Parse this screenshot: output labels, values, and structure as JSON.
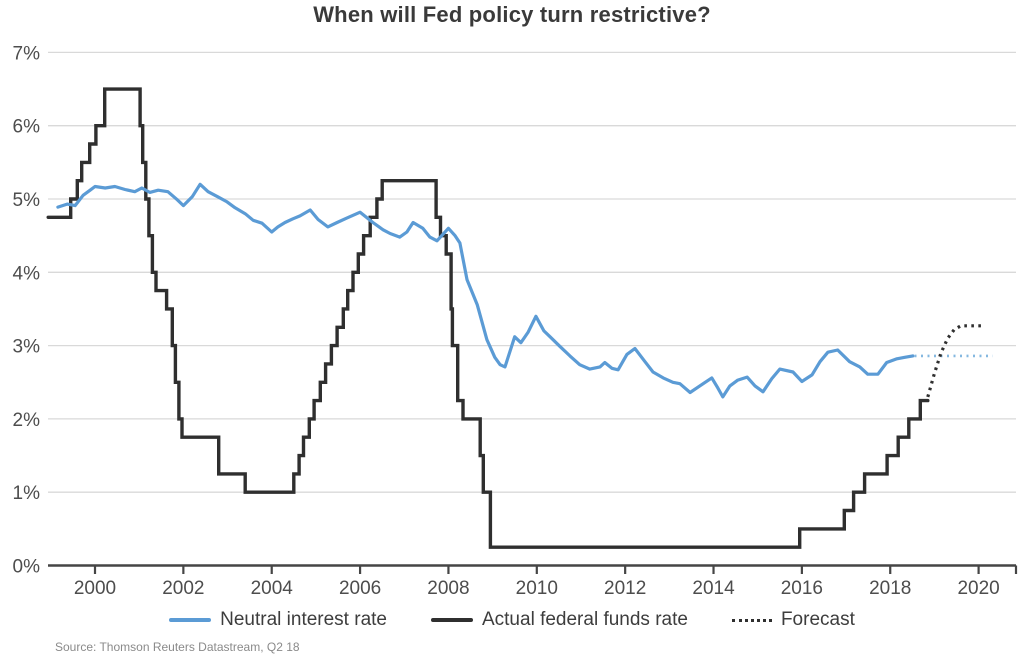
{
  "header": {
    "title": "When will Fed policy turn restrictive?"
  },
  "footer": {
    "source": "Source: Thomson Reuters Datastream, Q2 18"
  },
  "legend": {
    "items": [
      {
        "id": "neutral",
        "label": "Neutral interest rate",
        "swatch": "solid-blue-line-icon"
      },
      {
        "id": "actual",
        "label": "Actual federal funds rate",
        "swatch": "solid-black-line-icon"
      },
      {
        "id": "forecast",
        "label": "Forecast",
        "swatch": "dotted-black-line-icon"
      }
    ]
  },
  "colors": {
    "neutral": "#5B9BD5",
    "neutral_forecast": "#85b8e0",
    "actual": "#2f2f2f",
    "actual_forecast": "#2f2f2f",
    "gridline": "#d9d9d9",
    "axis": "#454545",
    "tick_label": "#4d4d4d",
    "title": "#3a3a3a",
    "source": "#8a8a8a"
  },
  "chart_data": {
    "type": "line",
    "title": "When will Fed policy turn restrictive?",
    "xlabel": "",
    "ylabel": "",
    "ylim": [
      0,
      7
    ],
    "xlim": [
      1998.94,
      2020.8
    ],
    "grid": "horizontal",
    "legend_position": "bottom",
    "y_ticks": [
      0,
      1,
      2,
      3,
      4,
      5,
      6,
      7
    ],
    "y_tick_labels": [
      "0%",
      "1%",
      "2%",
      "3%",
      "4%",
      "5%",
      "6%",
      "7%"
    ],
    "x_ticks": [
      2000,
      2002,
      2004,
      2006,
      2008,
      2010,
      2012,
      2014,
      2016,
      2018,
      2020
    ],
    "x_tick_labels": [
      "2000",
      "2002",
      "2004",
      "2006",
      "2008",
      "2010",
      "2012",
      "2014",
      "2016",
      "2018",
      "2020"
    ],
    "series": [
      {
        "id": "neutral",
        "name": "Neutral interest rate",
        "draw": "line",
        "style": "solid",
        "color": "#5B9BD5",
        "width": 3.2,
        "points": [
          [
            1999.16,
            4.89
          ],
          [
            1999.37,
            4.93
          ],
          [
            1999.55,
            4.91
          ],
          [
            1999.73,
            5.05
          ],
          [
            1999.89,
            5.12
          ],
          [
            2000.0,
            5.17
          ],
          [
            2000.23,
            5.15
          ],
          [
            2000.45,
            5.17
          ],
          [
            2000.68,
            5.13
          ],
          [
            2000.9,
            5.1
          ],
          [
            2001.06,
            5.15
          ],
          [
            2001.24,
            5.09
          ],
          [
            2001.43,
            5.12
          ],
          [
            2001.65,
            5.1
          ],
          [
            2001.86,
            4.99
          ],
          [
            2002.0,
            4.91
          ],
          [
            2002.2,
            5.03
          ],
          [
            2002.38,
            5.2
          ],
          [
            2002.56,
            5.1
          ],
          [
            2002.78,
            5.03
          ],
          [
            2002.99,
            4.96
          ],
          [
            2003.17,
            4.88
          ],
          [
            2003.4,
            4.8
          ],
          [
            2003.58,
            4.71
          ],
          [
            2003.78,
            4.67
          ],
          [
            2004.0,
            4.55
          ],
          [
            2004.14,
            4.62
          ],
          [
            2004.3,
            4.68
          ],
          [
            2004.48,
            4.73
          ],
          [
            2004.64,
            4.77
          ],
          [
            2004.87,
            4.85
          ],
          [
            2005.05,
            4.72
          ],
          [
            2005.27,
            4.62
          ],
          [
            2005.48,
            4.68
          ],
          [
            2005.7,
            4.74
          ],
          [
            2006.0,
            4.82
          ],
          [
            2006.29,
            4.68
          ],
          [
            2006.52,
            4.58
          ],
          [
            2006.68,
            4.53
          ],
          [
            2006.9,
            4.48
          ],
          [
            2007.06,
            4.55
          ],
          [
            2007.2,
            4.68
          ],
          [
            2007.42,
            4.6
          ],
          [
            2007.58,
            4.48
          ],
          [
            2007.74,
            4.43
          ],
          [
            2008.0,
            4.6
          ],
          [
            2008.15,
            4.5
          ],
          [
            2008.26,
            4.4
          ],
          [
            2008.42,
            3.9
          ],
          [
            2008.65,
            3.56
          ],
          [
            2008.87,
            3.08
          ],
          [
            2009.05,
            2.84
          ],
          [
            2009.17,
            2.74
          ],
          [
            2009.28,
            2.71
          ],
          [
            2009.5,
            3.12
          ],
          [
            2009.64,
            3.04
          ],
          [
            2009.8,
            3.18
          ],
          [
            2009.98,
            3.4
          ],
          [
            2010.16,
            3.2
          ],
          [
            2010.3,
            3.12
          ],
          [
            2010.52,
            2.99
          ],
          [
            2010.75,
            2.86
          ],
          [
            2010.97,
            2.74
          ],
          [
            2011.2,
            2.68
          ],
          [
            2011.43,
            2.71
          ],
          [
            2011.54,
            2.77
          ],
          [
            2011.7,
            2.69
          ],
          [
            2011.84,
            2.67
          ],
          [
            2012.04,
            2.88
          ],
          [
            2012.22,
            2.96
          ],
          [
            2012.45,
            2.78
          ],
          [
            2012.63,
            2.64
          ],
          [
            2012.86,
            2.56
          ],
          [
            2013.08,
            2.5
          ],
          [
            2013.24,
            2.48
          ],
          [
            2013.47,
            2.36
          ],
          [
            2013.69,
            2.45
          ],
          [
            2013.96,
            2.56
          ],
          [
            2014.1,
            2.42
          ],
          [
            2014.21,
            2.3
          ],
          [
            2014.37,
            2.45
          ],
          [
            2014.55,
            2.53
          ],
          [
            2014.76,
            2.57
          ],
          [
            2014.94,
            2.45
          ],
          [
            2015.12,
            2.37
          ],
          [
            2015.32,
            2.55
          ],
          [
            2015.5,
            2.68
          ],
          [
            2015.8,
            2.64
          ],
          [
            2016.0,
            2.51
          ],
          [
            2016.23,
            2.6
          ],
          [
            2016.41,
            2.78
          ],
          [
            2016.59,
            2.91
          ],
          [
            2016.81,
            2.94
          ],
          [
            2017.08,
            2.78
          ],
          [
            2017.31,
            2.71
          ],
          [
            2017.49,
            2.61
          ],
          [
            2017.72,
            2.61
          ],
          [
            2017.92,
            2.77
          ],
          [
            2018.15,
            2.82
          ],
          [
            2018.33,
            2.84
          ],
          [
            2018.51,
            2.86
          ]
        ]
      },
      {
        "id": "actual",
        "name": "Actual federal funds rate",
        "draw": "step",
        "style": "solid",
        "color": "#2f2f2f",
        "width": 3.4,
        "solid_end": 2018.85,
        "points": [
          [
            1998.94,
            4.75
          ],
          [
            1999.45,
            5.0
          ],
          [
            1999.6,
            5.25
          ],
          [
            1999.7,
            5.5
          ],
          [
            1999.88,
            5.75
          ],
          [
            2000.02,
            6.0
          ],
          [
            2000.22,
            6.5
          ],
          [
            2001.02,
            6.0
          ],
          [
            2001.08,
            5.5
          ],
          [
            2001.15,
            5.0
          ],
          [
            2001.22,
            4.5
          ],
          [
            2001.3,
            4.0
          ],
          [
            2001.38,
            3.75
          ],
          [
            2001.62,
            3.5
          ],
          [
            2001.75,
            3.0
          ],
          [
            2001.82,
            2.5
          ],
          [
            2001.9,
            2.0
          ],
          [
            2001.97,
            1.75
          ],
          [
            2002.8,
            1.25
          ],
          [
            2003.4,
            1.0
          ],
          [
            2004.5,
            1.25
          ],
          [
            2004.62,
            1.5
          ],
          [
            2004.72,
            1.75
          ],
          [
            2004.85,
            2.0
          ],
          [
            2004.96,
            2.25
          ],
          [
            2005.1,
            2.5
          ],
          [
            2005.22,
            2.75
          ],
          [
            2005.35,
            3.0
          ],
          [
            2005.48,
            3.25
          ],
          [
            2005.62,
            3.5
          ],
          [
            2005.72,
            3.75
          ],
          [
            2005.84,
            4.0
          ],
          [
            2005.96,
            4.25
          ],
          [
            2006.08,
            4.5
          ],
          [
            2006.23,
            4.75
          ],
          [
            2006.38,
            5.0
          ],
          [
            2006.5,
            5.25
          ],
          [
            2007.72,
            4.75
          ],
          [
            2007.82,
            4.5
          ],
          [
            2007.95,
            4.25
          ],
          [
            2008.06,
            3.5
          ],
          [
            2008.09,
            3.0
          ],
          [
            2008.21,
            2.25
          ],
          [
            2008.33,
            2.0
          ],
          [
            2008.72,
            1.5
          ],
          [
            2008.79,
            1.0
          ],
          [
            2008.95,
            0.25
          ],
          [
            2015.95,
            0.5
          ],
          [
            2016.96,
            0.75
          ],
          [
            2017.17,
            1.0
          ],
          [
            2017.42,
            1.25
          ],
          [
            2017.93,
            1.5
          ],
          [
            2018.18,
            1.75
          ],
          [
            2018.42,
            2.0
          ],
          [
            2018.68,
            2.25
          ]
        ]
      },
      {
        "id": "actual_forecast",
        "name": "Forecast (federal funds rate)",
        "draw": "line",
        "style": "dotted",
        "color": "#2f2f2f",
        "width": 3.2,
        "points": [
          [
            2018.85,
            2.3
          ],
          [
            2019.0,
            2.62
          ],
          [
            2019.15,
            2.9
          ],
          [
            2019.3,
            3.1
          ],
          [
            2019.45,
            3.22
          ],
          [
            2019.6,
            3.27
          ],
          [
            2020.15,
            3.27
          ]
        ]
      },
      {
        "id": "neutral_forecast",
        "name": "Forecast (neutral interest rate)",
        "draw": "line",
        "style": "dotted",
        "color": "#85b8e0",
        "width": 2.6,
        "points": [
          [
            2018.55,
            2.86
          ],
          [
            2020.32,
            2.86
          ]
        ]
      }
    ]
  }
}
